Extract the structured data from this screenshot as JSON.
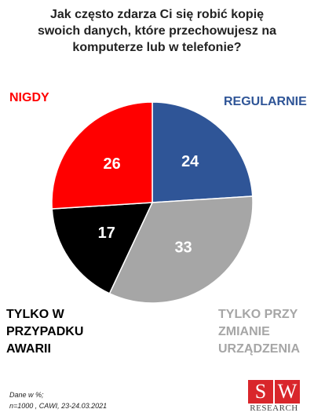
{
  "chart_data": {
    "type": "pie",
    "title": "Jak często zdarza Ci się robić kopię\nswoich danych, które przechowujesz na\nkomputerze lub w telefonie?",
    "categories": [
      "REGULARNIE",
      "TYLKO PRZY\nZMIANIE\nURZĄDZENIA",
      "TYLKO W\nPRZYPADKU\nAWARII",
      "NIGDY"
    ],
    "values": [
      24,
      33,
      17,
      26
    ],
    "colors": [
      "#2f5597",
      "#a6a6a6",
      "#000000",
      "#ff0000"
    ],
    "source": [
      "Dane w %;",
      "n=1000 , CAWI, 23-24.03.2021"
    ]
  },
  "logo": {
    "letters": [
      "S",
      "W"
    ],
    "text": "RESEARCH"
  }
}
